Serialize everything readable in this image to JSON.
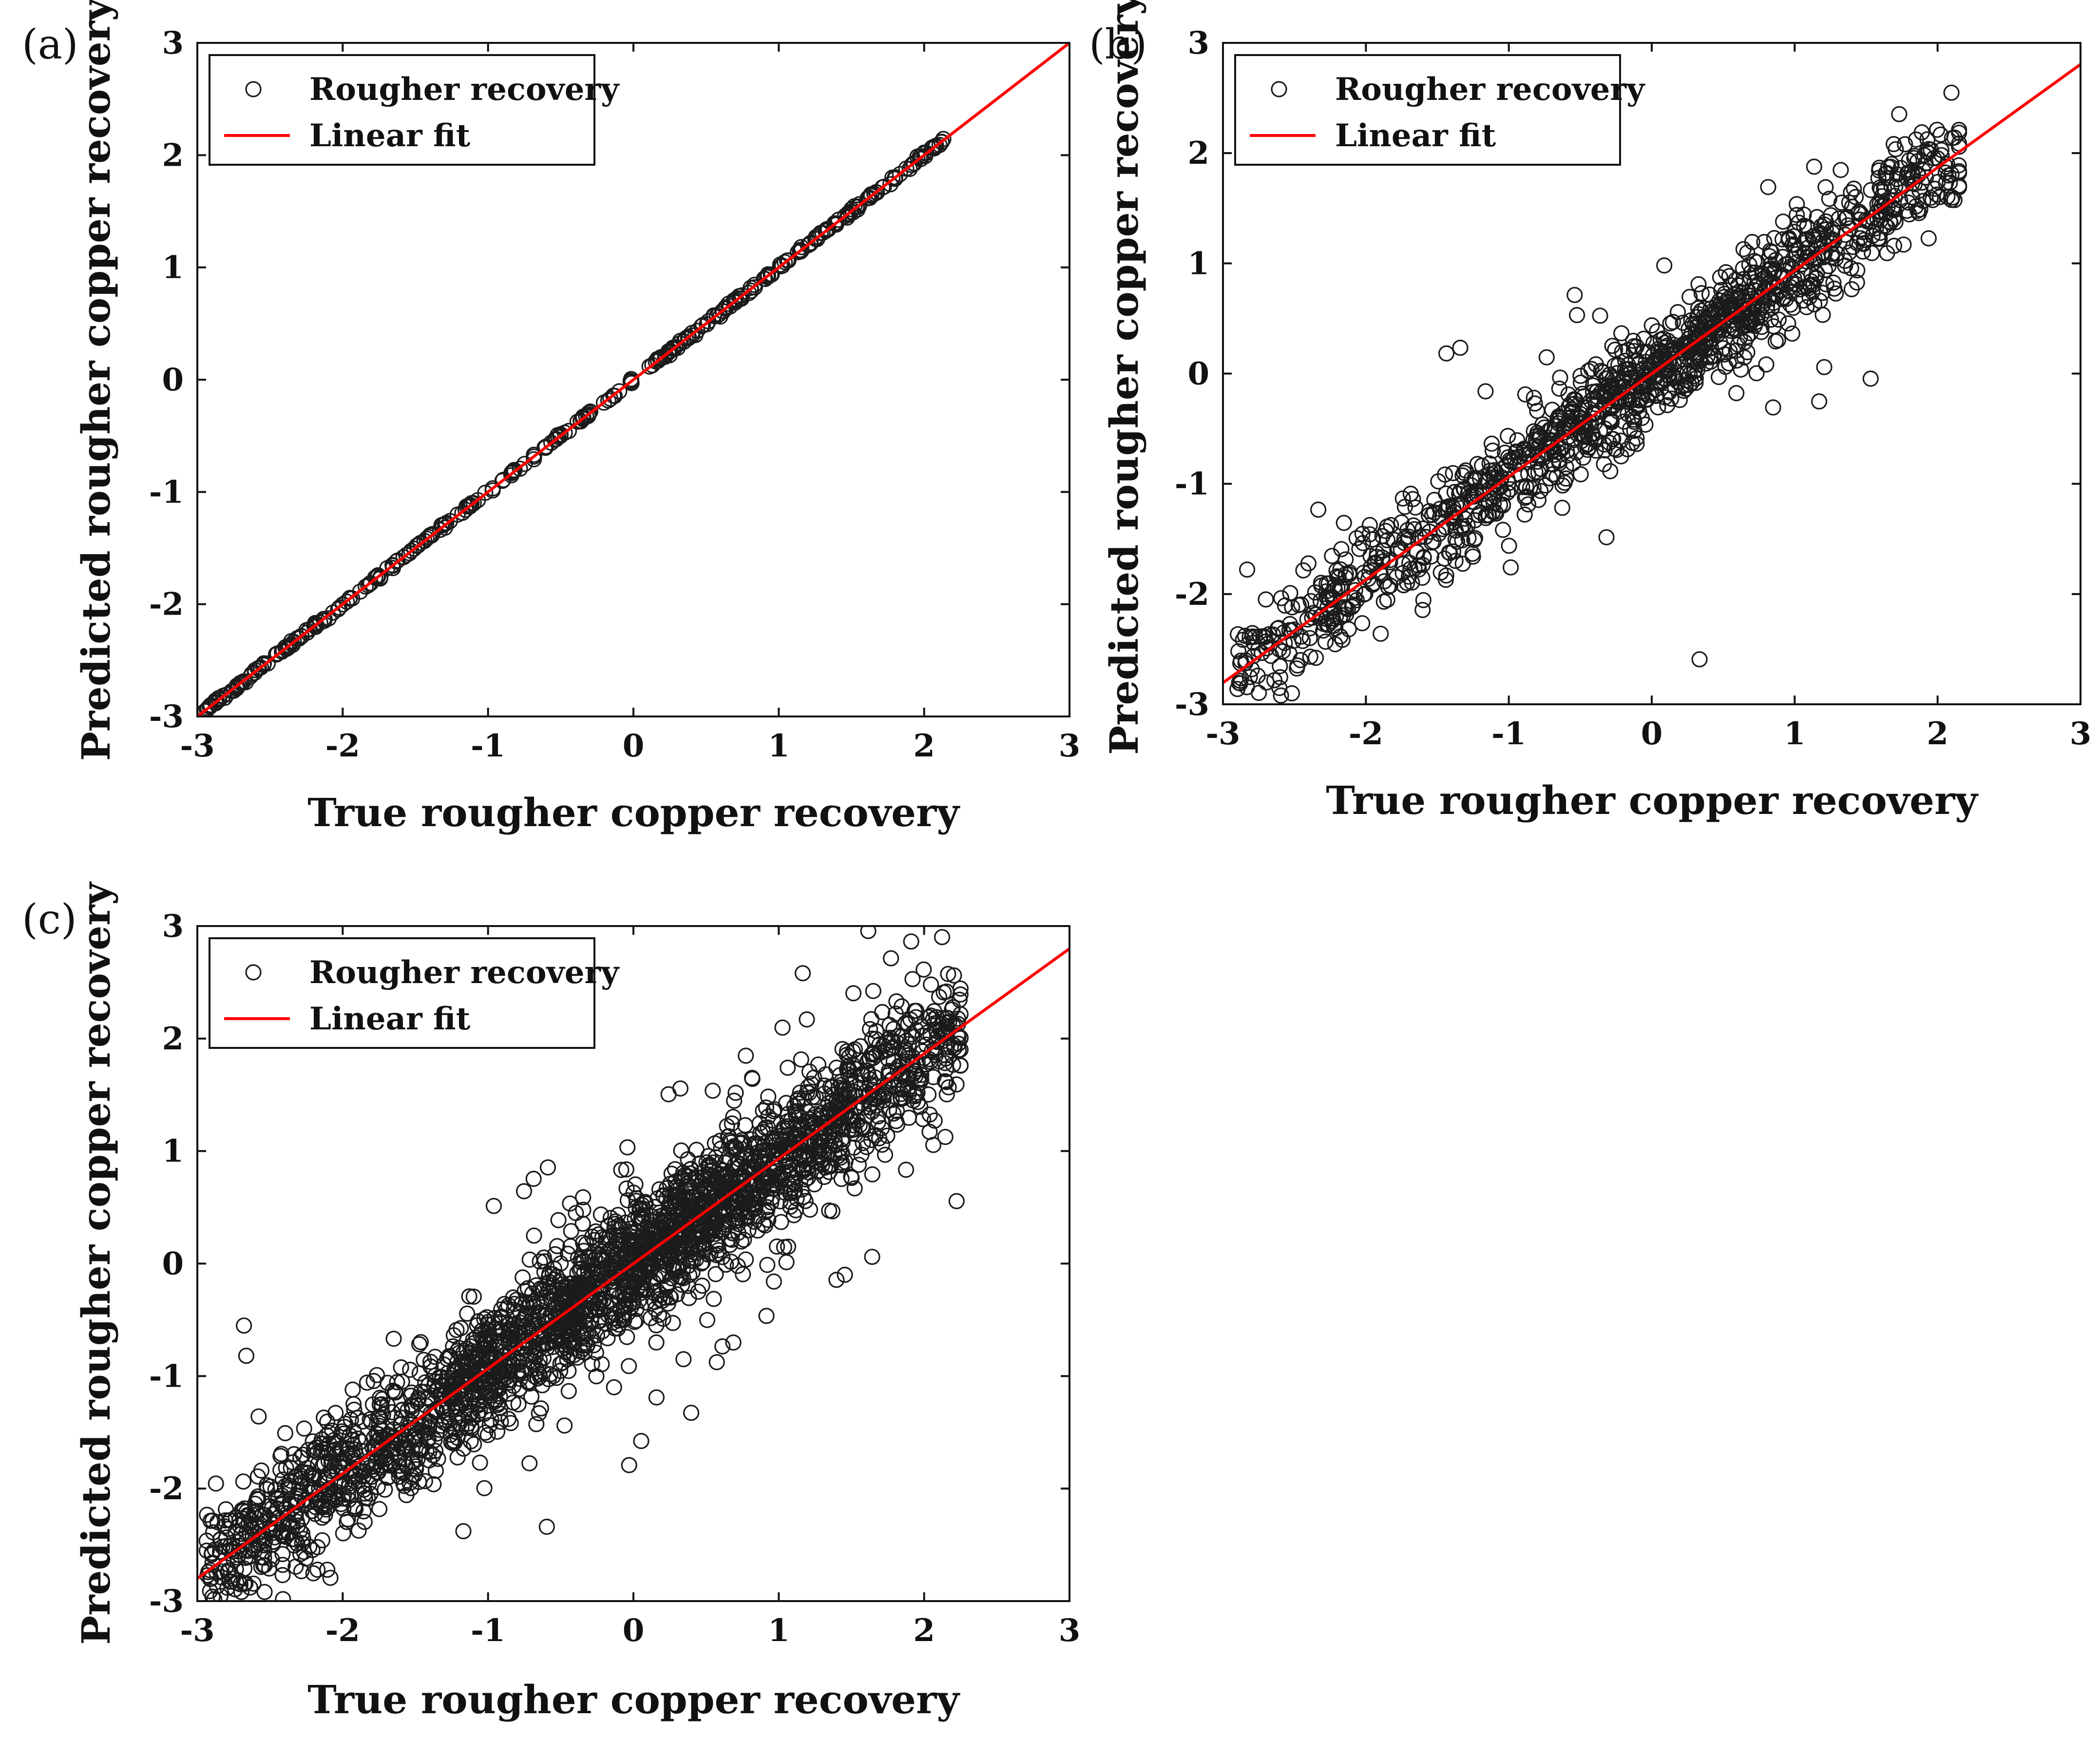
{
  "chart_data": [
    {
      "panel_label": "(a)",
      "type": "scatter",
      "xlabel": "True rougher copper recovery",
      "ylabel": "Predicted rougher copper recovery",
      "xlim": [
        -3,
        3
      ],
      "ylim": [
        -3,
        3
      ],
      "xticks": [
        "-3",
        "-2",
        "-1",
        "0",
        "1",
        "2",
        "3"
      ],
      "yticks": [
        "-3",
        "-2",
        "-1",
        "0",
        "1",
        "2",
        "3"
      ],
      "legend": {
        "position": "top-left",
        "entries": [
          "Rougher recovery",
          "Linear fit"
        ]
      },
      "series": [
        {
          "name": "Rougher recovery",
          "marker": "open-circle",
          "noise": 0.012,
          "x_range": [
            -2.95,
            2.15
          ],
          "n_points": 320
        },
        {
          "name": "Linear fit",
          "slope": 1.0,
          "intercept": 0.0,
          "color": "#ff0000"
        }
      ]
    },
    {
      "panel_label": "(b)",
      "type": "scatter",
      "xlabel": "True rougher copper recovery",
      "ylabel": "Predicted rougher copper recovery",
      "xlim": [
        -3,
        3
      ],
      "ylim": [
        -3,
        3
      ],
      "xticks": [
        "-3",
        "-2",
        "-1",
        "0",
        "1",
        "2",
        "3"
      ],
      "yticks": [
        "-3",
        "-2",
        "-1",
        "0",
        "1",
        "2",
        "3"
      ],
      "legend": {
        "position": "top-left",
        "entries": [
          "Rougher recovery",
          "Linear fit"
        ]
      },
      "series": [
        {
          "name": "Rougher recovery",
          "marker": "open-circle",
          "noise": 0.22,
          "x_range": [
            -2.9,
            2.15
          ],
          "n_points": 1300
        },
        {
          "name": "Linear fit",
          "slope": 0.935,
          "intercept": 0.0,
          "color": "#ff0000"
        }
      ]
    },
    {
      "panel_label": "(c)",
      "type": "scatter",
      "xlabel": "True rougher copper recovery",
      "ylabel": "Predicted rougher copper recovery",
      "xlim": [
        -3,
        3
      ],
      "ylim": [
        -3,
        3
      ],
      "xticks": [
        "-3",
        "-2",
        "-1",
        "0",
        "1",
        "2",
        "3"
      ],
      "yticks": [
        "-3",
        "-2",
        "-1",
        "0",
        "1",
        "2",
        "3"
      ],
      "legend": {
        "position": "top-left",
        "entries": [
          "Rougher recovery",
          "Linear fit"
        ]
      },
      "series": [
        {
          "name": "Rougher recovery",
          "marker": "open-circle",
          "noise": 0.3,
          "x_range": [
            -2.95,
            2.25
          ],
          "n_points": 2600
        },
        {
          "name": "Linear fit",
          "slope": 0.933,
          "intercept": 0.0,
          "color": "#ff0000"
        }
      ]
    }
  ]
}
